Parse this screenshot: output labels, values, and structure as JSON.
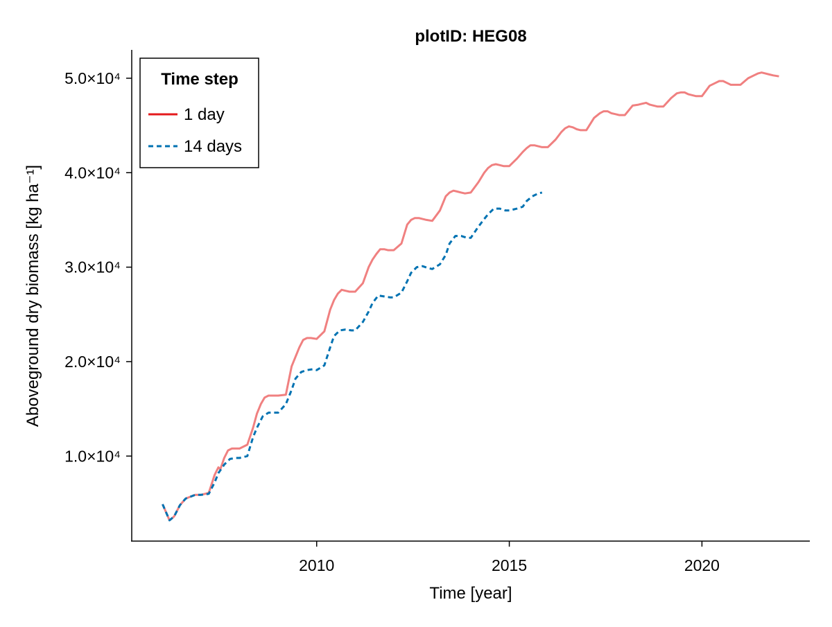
{
  "chart_data": {
    "type": "line",
    "title": "plotID: HEG08",
    "xlabel": "Time [year]",
    "ylabel": "Aboveground dry biomass [kg ha⁻¹]",
    "xlim": [
      2005.2,
      2022.8
    ],
    "ylim": [
      1000,
      53000
    ],
    "x_ticks": [
      {
        "value": 2010,
        "label": "2010"
      },
      {
        "value": 2015,
        "label": "2015"
      },
      {
        "value": 2020,
        "label": "2020"
      }
    ],
    "y_ticks": [
      {
        "value": 10000,
        "label": "1.0×10⁴"
      },
      {
        "value": 20000,
        "label": "2.0×10⁴"
      },
      {
        "value": 30000,
        "label": "3.0×10⁴"
      },
      {
        "value": 40000,
        "label": "4.0×10⁴"
      },
      {
        "value": 50000,
        "label": "5.0×10⁴"
      }
    ],
    "grid": false,
    "legend": {
      "title": "Time step",
      "position": "top-left"
    },
    "series": [
      {
        "name": "1 day",
        "color": "#f08080",
        "legend_color": "#e41a1c",
        "style": "solid",
        "x": [
          2006.0,
          2006.18,
          2006.3,
          2006.45,
          2006.6,
          2006.85,
          2007.0,
          2007.2,
          2007.35,
          2007.45,
          2007.5,
          2007.55,
          2007.6,
          2007.7,
          2007.8,
          2007.9,
          2008.0,
          2008.2,
          2008.35,
          2008.45,
          2008.55,
          2008.65,
          2008.75,
          2008.85,
          2009.0,
          2009.2,
          2009.35,
          2009.45,
          2009.55,
          2009.65,
          2009.75,
          2009.85,
          2010.0,
          2010.2,
          2010.35,
          2010.45,
          2010.55,
          2010.65,
          2010.75,
          2010.85,
          2011.0,
          2011.2,
          2011.35,
          2011.45,
          2011.55,
          2011.65,
          2011.75,
          2011.85,
          2012.0,
          2012.2,
          2012.35,
          2012.45,
          2012.55,
          2012.65,
          2012.75,
          2012.85,
          2013.0,
          2013.2,
          2013.35,
          2013.45,
          2013.55,
          2013.65,
          2013.75,
          2013.85,
          2014.0,
          2014.2,
          2014.35,
          2014.45,
          2014.55,
          2014.65,
          2014.75,
          2014.85,
          2015.0,
          2015.2,
          2015.35,
          2015.45,
          2015.55,
          2015.65,
          2015.75,
          2015.85,
          2016.0,
          2016.2,
          2016.35,
          2016.45,
          2016.55,
          2016.65,
          2016.75,
          2016.85,
          2017.0,
          2017.2,
          2017.35,
          2017.45,
          2017.55,
          2017.65,
          2017.75,
          2017.85,
          2018.0,
          2018.2,
          2018.35,
          2018.45,
          2018.55,
          2018.65,
          2018.75,
          2018.85,
          2019.0,
          2019.2,
          2019.35,
          2019.45,
          2019.55,
          2019.65,
          2019.75,
          2019.85,
          2020.0,
          2020.2,
          2020.35,
          2020.45,
          2020.55,
          2020.65,
          2020.75,
          2020.85,
          2021.0,
          2021.2,
          2021.35,
          2021.45,
          2021.55,
          2021.65,
          2021.75,
          2021.85,
          2022.0
        ],
        "y": [
          4900,
          3200,
          3600,
          4800,
          5500,
          5900,
          5900,
          6100,
          8000,
          8800,
          8600,
          9200,
          9800,
          10600,
          10800,
          10800,
          10800,
          11200,
          13000,
          14500,
          15500,
          16200,
          16400,
          16400,
          16400,
          16500,
          19500,
          20500,
          21500,
          22300,
          22500,
          22500,
          22400,
          23200,
          25500,
          26500,
          27200,
          27600,
          27500,
          27400,
          27400,
          28300,
          30000,
          30800,
          31400,
          31900,
          31900,
          31800,
          31800,
          32500,
          34500,
          35000,
          35200,
          35200,
          35100,
          35000,
          34900,
          36000,
          37500,
          37900,
          38100,
          38000,
          37900,
          37800,
          37900,
          39000,
          40000,
          40500,
          40800,
          40900,
          40800,
          40700,
          40700,
          41500,
          42200,
          42600,
          42900,
          42900,
          42800,
          42700,
          42700,
          43500,
          44300,
          44700,
          44900,
          44800,
          44600,
          44500,
          44500,
          45800,
          46300,
          46500,
          46500,
          46300,
          46200,
          46100,
          46100,
          47100,
          47200,
          47300,
          47400,
          47200,
          47100,
          47000,
          47000,
          47900,
          48400,
          48500,
          48500,
          48300,
          48200,
          48100,
          48100,
          49200,
          49500,
          49700,
          49700,
          49500,
          49300,
          49300,
          49300,
          50000,
          50300,
          50500,
          50600,
          50500,
          50400,
          50300,
          50200
        ]
      },
      {
        "name": "14 days",
        "color": "#0072b2",
        "legend_color": "#0072b2",
        "style": "dashed",
        "x": [
          2006.0,
          2006.18,
          2006.3,
          2006.45,
          2006.6,
          2006.85,
          2007.0,
          2007.2,
          2007.35,
          2007.45,
          2007.6,
          2007.75,
          2007.9,
          2008.0,
          2008.2,
          2008.35,
          2008.45,
          2008.6,
          2008.75,
          2008.9,
          2009.0,
          2009.2,
          2009.35,
          2009.45,
          2009.6,
          2009.75,
          2009.9,
          2010.0,
          2010.2,
          2010.35,
          2010.45,
          2010.6,
          2010.75,
          2010.9,
          2011.0,
          2011.2,
          2011.35,
          2011.45,
          2011.6,
          2011.75,
          2011.9,
          2012.0,
          2012.2,
          2012.35,
          2012.45,
          2012.6,
          2012.75,
          2012.9,
          2013.0,
          2013.2,
          2013.35,
          2013.45,
          2013.6,
          2013.75,
          2013.9,
          2014.0,
          2014.2,
          2014.35,
          2014.45,
          2014.6,
          2014.75,
          2014.9,
          2015.0,
          2015.2,
          2015.35,
          2015.45,
          2015.6,
          2015.75,
          2015.85
        ],
        "y": [
          4900,
          3200,
          3600,
          4800,
          5500,
          5900,
          5900,
          6000,
          7200,
          8200,
          9100,
          9700,
          9800,
          9800,
          10000,
          12000,
          13000,
          14200,
          14600,
          14600,
          14600,
          15500,
          17000,
          18200,
          18900,
          19100,
          19200,
          19100,
          19600,
          21500,
          22700,
          23300,
          23400,
          23300,
          23300,
          24200,
          25300,
          26200,
          27000,
          26900,
          26800,
          26800,
          27300,
          28500,
          29400,
          30000,
          30100,
          29900,
          29800,
          30300,
          31300,
          32500,
          33300,
          33300,
          33100,
          33100,
          34300,
          35100,
          35600,
          36200,
          36200,
          36000,
          36000,
          36200,
          36400,
          37000,
          37500,
          37800,
          37900
        ]
      }
    ]
  }
}
